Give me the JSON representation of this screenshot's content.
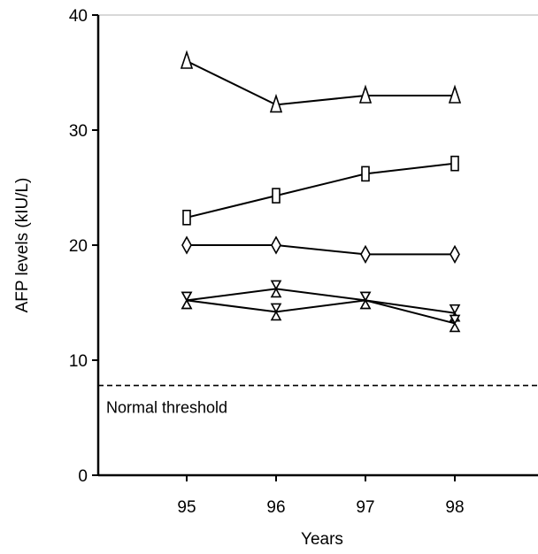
{
  "chart_data": {
    "type": "line",
    "x": [
      95,
      96,
      97,
      98
    ],
    "x_ticks": [
      "95",
      "96",
      "97",
      "98"
    ],
    "y_ticks": [
      "0",
      "10",
      "20",
      "30",
      "40"
    ],
    "xlabel": "Years",
    "ylabel": "AFP levels (kIU/L)",
    "ylim": [
      0,
      40
    ],
    "grid": false,
    "series": [
      {
        "marker": "triangle",
        "values": [
          36,
          32.2,
          33,
          33
        ]
      },
      {
        "marker": "square",
        "values": [
          22.4,
          24.3,
          26.2,
          27.1
        ]
      },
      {
        "marker": "diamond",
        "values": [
          20,
          20,
          19.2,
          19.2
        ]
      },
      {
        "marker": "hourglass",
        "values": [
          15.2,
          16.2,
          15.2,
          14.1
        ]
      },
      {
        "marker": "hourglass",
        "values": [
          15.2,
          14.2,
          15.2,
          13.2
        ]
      }
    ],
    "threshold": {
      "value": 7.8,
      "style": "dashed",
      "label": "Normal threshold"
    }
  }
}
